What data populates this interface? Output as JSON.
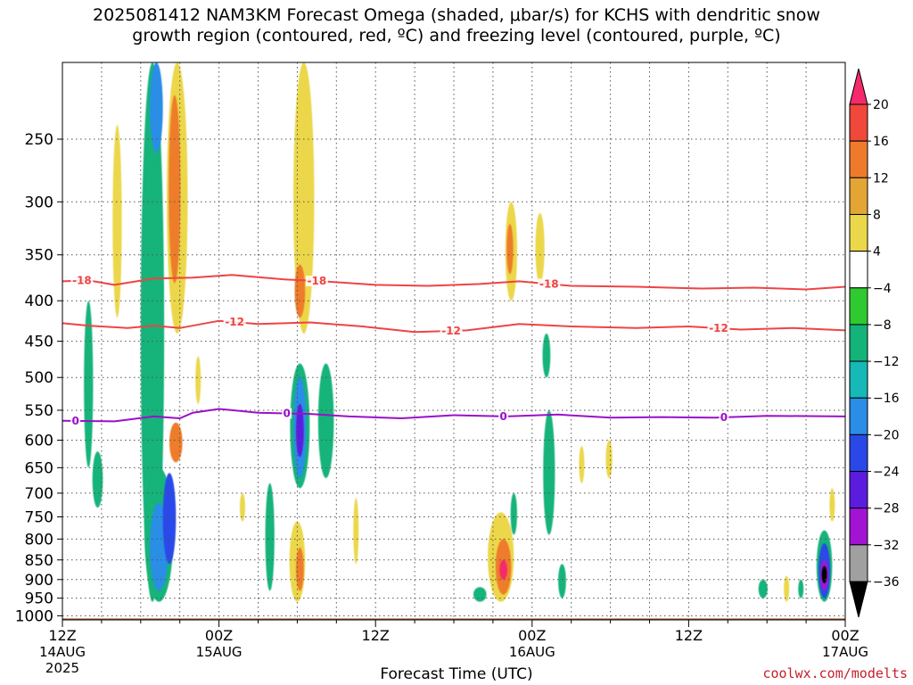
{
  "chart_data": {
    "type": "heatmap",
    "title_line1": "2025081412 NAM3KM Forecast Omega (shaded, μbar/s) for KCHS with dendritic snow",
    "title_line2": "growth region (contoured, red, ºC) and freezing level (contoured, purple, ºC)",
    "xlabel": "Forecast Time (UTC)",
    "credit": "coolwx.com/modelts",
    "x_ticks": [
      {
        "hour": 0,
        "label": "12Z",
        "date": "14AUG",
        "year": "2025"
      },
      {
        "hour": 12,
        "label": "00Z",
        "date": "15AUG"
      },
      {
        "hour": 24,
        "label": "12Z"
      },
      {
        "hour": 36,
        "label": "00Z",
        "date": "16AUG"
      },
      {
        "hour": 48,
        "label": "12Z"
      },
      {
        "hour": 60,
        "label": "00Z",
        "date": "17AUG"
      }
    ],
    "y_ticks": [
      250,
      300,
      350,
      400,
      450,
      500,
      550,
      600,
      650,
      700,
      750,
      800,
      850,
      900,
      950,
      1000
    ],
    "y_range_hpa": [
      200,
      1012
    ],
    "colorbar": {
      "labels": [
        "20",
        "16",
        "12",
        "8",
        "4",
        "−4",
        "−8",
        "−12",
        "−16",
        "−20",
        "−24",
        "−28",
        "−32",
        "−36"
      ],
      "colors": [
        "#f52a6a",
        "#f0483a",
        "#ee7b2c",
        "#e3a634",
        "#ebd74a",
        "#ffffff",
        "#2fca2f",
        "#14b37a",
        "#16b8b8",
        "#2a8de6",
        "#2a48e8",
        "#5c1ce0",
        "#a214d4",
        "#a0a0a0",
        "#000000"
      ]
    },
    "contours": {
      "minus18": {
        "label": "-18",
        "color": "#ee4444",
        "points": [
          [
            0,
            378
          ],
          [
            2,
            377
          ],
          [
            4,
            382
          ],
          [
            7,
            375
          ],
          [
            10,
            374
          ],
          [
            13,
            371
          ],
          [
            17,
            376
          ],
          [
            20,
            378
          ],
          [
            24,
            382
          ],
          [
            28,
            383
          ],
          [
            32,
            381
          ],
          [
            35,
            378
          ],
          [
            39,
            383
          ],
          [
            44,
            384
          ],
          [
            49,
            386
          ],
          [
            53,
            385
          ],
          [
            57,
            387
          ],
          [
            60,
            384
          ]
        ],
        "label_hours": [
          1.5,
          19.5,
          37.3
        ]
      },
      "minus12": {
        "label": "-12",
        "color": "#ee4444",
        "points": [
          [
            0,
            427
          ],
          [
            2,
            430
          ],
          [
            5,
            433
          ],
          [
            7,
            430
          ],
          [
            9,
            433
          ],
          [
            12,
            424
          ],
          [
            15,
            428
          ],
          [
            19,
            426
          ],
          [
            23,
            431
          ],
          [
            27,
            438
          ],
          [
            31,
            436
          ],
          [
            35,
            428
          ],
          [
            39,
            431
          ],
          [
            44,
            433
          ],
          [
            48,
            431
          ],
          [
            52,
            435
          ],
          [
            56,
            433
          ],
          [
            60,
            436
          ]
        ],
        "label_hours": [
          13.2,
          29.8,
          50.3
        ]
      },
      "freezing": {
        "label": "0",
        "color": "#9a10c8",
        "points": [
          [
            0,
            567
          ],
          [
            4,
            568
          ],
          [
            7,
            560
          ],
          [
            9,
            563
          ],
          [
            10,
            554
          ],
          [
            12,
            548
          ],
          [
            15,
            554
          ],
          [
            19,
            556
          ],
          [
            22,
            560
          ],
          [
            26,
            563
          ],
          [
            30,
            558
          ],
          [
            34,
            560
          ],
          [
            38,
            557
          ],
          [
            42,
            562
          ],
          [
            46,
            561
          ],
          [
            50,
            562
          ],
          [
            54,
            559
          ],
          [
            60,
            560
          ]
        ],
        "label_hours": [
          1.0,
          17.2,
          33.8,
          50.7
        ]
      }
    },
    "omega_blobs": [
      {
        "hour": 4.2,
        "p_top": 240,
        "p_bot": 420,
        "halfwidth_hr": 0.35,
        "value": 6
      },
      {
        "hour": 6.9,
        "p_top": 200,
        "p_bot": 960,
        "halfwidth_hr": 0.9,
        "value": -8
      },
      {
        "hour": 7.4,
        "p_top": 650,
        "p_bot": 960,
        "halfwidth_hr": 1.1,
        "value": -8
      },
      {
        "hour": 7.4,
        "p_top": 720,
        "p_bot": 930,
        "halfwidth_hr": 0.7,
        "value": -16
      },
      {
        "hour": 7.2,
        "p_top": 200,
        "p_bot": 260,
        "halfwidth_hr": 0.5,
        "value": -16
      },
      {
        "hour": 8.2,
        "p_top": 660,
        "p_bot": 860,
        "halfwidth_hr": 0.5,
        "value": -20
      },
      {
        "hour": 8.8,
        "p_top": 200,
        "p_bot": 440,
        "halfwidth_hr": 0.8,
        "value": 6
      },
      {
        "hour": 8.6,
        "p_top": 220,
        "p_bot": 380,
        "halfwidth_hr": 0.45,
        "value": 14
      },
      {
        "hour": 8.7,
        "p_top": 570,
        "p_bot": 640,
        "halfwidth_hr": 0.5,
        "value": 14
      },
      {
        "hour": 10.4,
        "p_top": 470,
        "p_bot": 540,
        "halfwidth_hr": 0.15,
        "value": 6
      },
      {
        "hour": 2.0,
        "p_top": 400,
        "p_bot": 650,
        "halfwidth_hr": 0.35,
        "value": -8
      },
      {
        "hour": 2.7,
        "p_top": 620,
        "p_bot": 730,
        "halfwidth_hr": 0.4,
        "value": -8
      },
      {
        "hour": 13.8,
        "p_top": 700,
        "p_bot": 760,
        "halfwidth_hr": 0.2,
        "value": 6
      },
      {
        "hour": 15.9,
        "p_top": 680,
        "p_bot": 930,
        "halfwidth_hr": 0.35,
        "value": -8
      },
      {
        "hour": 18.5,
        "p_top": 200,
        "p_bot": 440,
        "halfwidth_hr": 0.8,
        "value": 6
      },
      {
        "hour": 18.2,
        "p_top": 360,
        "p_bot": 420,
        "halfwidth_hr": 0.4,
        "value": 12
      },
      {
        "hour": 18.2,
        "p_top": 480,
        "p_bot": 690,
        "halfwidth_hr": 0.75,
        "value": -8
      },
      {
        "hour": 18.2,
        "p_top": 500,
        "p_bot": 670,
        "halfwidth_hr": 0.5,
        "value": -16
      },
      {
        "hour": 18.2,
        "p_top": 540,
        "p_bot": 630,
        "halfwidth_hr": 0.3,
        "value": -24
      },
      {
        "hour": 20.2,
        "p_top": 480,
        "p_bot": 670,
        "halfwidth_hr": 0.6,
        "value": -8
      },
      {
        "hour": 18.0,
        "p_top": 760,
        "p_bot": 960,
        "halfwidth_hr": 0.6,
        "value": 6
      },
      {
        "hour": 18.2,
        "p_top": 820,
        "p_bot": 930,
        "halfwidth_hr": 0.3,
        "value": 12
      },
      {
        "hour": 22.5,
        "p_top": 710,
        "p_bot": 860,
        "halfwidth_hr": 0.2,
        "value": 6
      },
      {
        "hour": 34.4,
        "p_top": 300,
        "p_bot": 400,
        "halfwidth_hr": 0.45,
        "value": 6
      },
      {
        "hour": 34.3,
        "p_top": 320,
        "p_bot": 370,
        "halfwidth_hr": 0.25,
        "value": 12
      },
      {
        "hour": 36.6,
        "p_top": 310,
        "p_bot": 380,
        "halfwidth_hr": 0.35,
        "value": 6
      },
      {
        "hour": 37.1,
        "p_top": 440,
        "p_bot": 500,
        "halfwidth_hr": 0.3,
        "value": -8
      },
      {
        "hour": 37.3,
        "p_top": 550,
        "p_bot": 790,
        "halfwidth_hr": 0.45,
        "value": -8
      },
      {
        "hour": 39.8,
        "p_top": 610,
        "p_bot": 680,
        "halfwidth_hr": 0.2,
        "value": 6
      },
      {
        "hour": 41.9,
        "p_top": 600,
        "p_bot": 670,
        "halfwidth_hr": 0.25,
        "value": 6
      },
      {
        "hour": 34.6,
        "p_top": 700,
        "p_bot": 790,
        "halfwidth_hr": 0.25,
        "value": -8
      },
      {
        "hour": 33.6,
        "p_top": 740,
        "p_bot": 960,
        "halfwidth_hr": 1.0,
        "value": 6
      },
      {
        "hour": 33.8,
        "p_top": 800,
        "p_bot": 940,
        "halfwidth_hr": 0.6,
        "value": 12
      },
      {
        "hour": 33.8,
        "p_top": 850,
        "p_bot": 900,
        "halfwidth_hr": 0.3,
        "value": 20
      },
      {
        "hour": 32.0,
        "p_top": 920,
        "p_bot": 960,
        "halfwidth_hr": 0.5,
        "value": -8
      },
      {
        "hour": 38.3,
        "p_top": 860,
        "p_bot": 950,
        "halfwidth_hr": 0.3,
        "value": -8
      },
      {
        "hour": 53.7,
        "p_top": 900,
        "p_bot": 950,
        "halfwidth_hr": 0.35,
        "value": -8
      },
      {
        "hour": 55.5,
        "p_top": 890,
        "p_bot": 960,
        "halfwidth_hr": 0.2,
        "value": 6
      },
      {
        "hour": 56.6,
        "p_top": 900,
        "p_bot": 950,
        "halfwidth_hr": 0.2,
        "value": -8
      },
      {
        "hour": 59.0,
        "p_top": 690,
        "p_bot": 760,
        "halfwidth_hr": 0.12,
        "value": 6
      },
      {
        "hour": 58.4,
        "p_top": 780,
        "p_bot": 960,
        "halfwidth_hr": 0.6,
        "value": -8
      },
      {
        "hour": 58.4,
        "p_top": 810,
        "p_bot": 950,
        "halfwidth_hr": 0.45,
        "value": -20
      },
      {
        "hour": 58.4,
        "p_top": 850,
        "p_bot": 930,
        "halfwidth_hr": 0.3,
        "value": -28
      },
      {
        "hour": 58.4,
        "p_top": 865,
        "p_bot": 910,
        "halfwidth_hr": 0.12,
        "value": -36
      }
    ],
    "ground_color": "#a0522d"
  }
}
